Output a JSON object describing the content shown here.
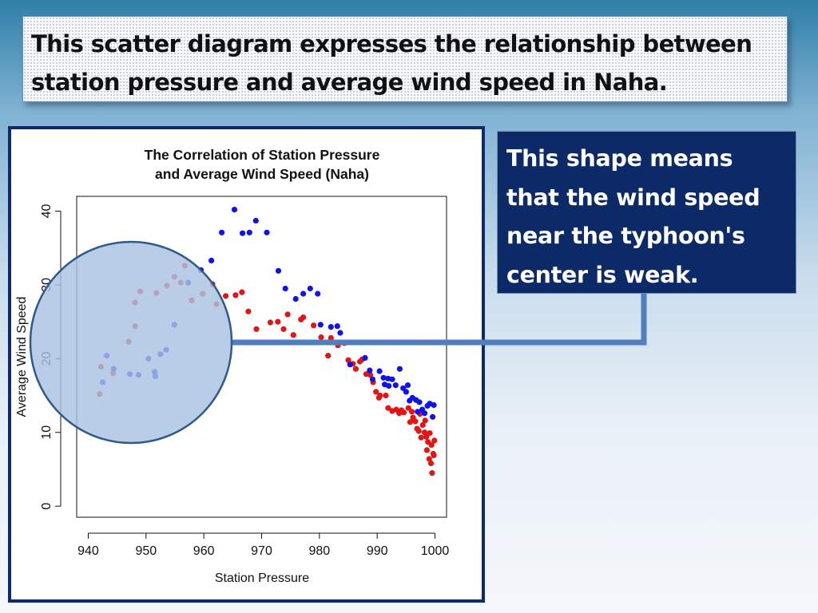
{
  "slide": {
    "title": "This scatter diagram expresses the relationship between station pressure and average wind speed in Naha.",
    "callout": "This shape means that the wind speed near the typhoon's center is weak."
  },
  "colors": {
    "series_red": "#e31414",
    "series_blue": "#1111ee",
    "highlight_fill": "#a9c3e1",
    "highlight_stroke": "#2f5a8a",
    "connector": "#4f7fbc",
    "frame": "#0d2a6c"
  },
  "chart_data": {
    "type": "scatter",
    "title": "The Correlation of Station Pressure and Average Wind Speed (Naha)",
    "title_lines": [
      "The Correlation of Station Pressure",
      "and Average Wind Speed (Naha)"
    ],
    "xlabel": "Station Pressure",
    "ylabel": "Average Wind Speed",
    "xlim": [
      938,
      1002
    ],
    "ylim": [
      -1.5,
      42
    ],
    "xticks": [
      940,
      950,
      960,
      970,
      980,
      990,
      1000
    ],
    "yticks": [
      0,
      10,
      20,
      30,
      40
    ],
    "grid": false,
    "series": [
      {
        "color": "#e31414",
        "points": [
          [
            942,
            15.2
          ],
          [
            942.2,
            18.9
          ],
          [
            944.3,
            18
          ],
          [
            947,
            22.3
          ],
          [
            948.1,
            24.4
          ],
          [
            948.1,
            27.6
          ],
          [
            949,
            29.1
          ],
          [
            951.8,
            28.9
          ],
          [
            953.6,
            29.9
          ],
          [
            954.9,
            31.1
          ],
          [
            956,
            30.3
          ],
          [
            956.7,
            32.6
          ],
          [
            957.9,
            27.9
          ],
          [
            959.8,
            28.8
          ],
          [
            961.5,
            30.1
          ],
          [
            962.2,
            27.4
          ],
          [
            963.8,
            28.5
          ],
          [
            965.5,
            28.6
          ],
          [
            966.6,
            29
          ],
          [
            967.7,
            26.4
          ],
          [
            969.1,
            24
          ],
          [
            971.5,
            24.9
          ],
          [
            972.8,
            25
          ],
          [
            973.8,
            24
          ],
          [
            974.5,
            26
          ],
          [
            975.5,
            23.2
          ],
          [
            976.8,
            25.3
          ],
          [
            977.2,
            25.6
          ],
          [
            979,
            24.5
          ],
          [
            980.3,
            22.9
          ],
          [
            981.5,
            20.4
          ],
          [
            982,
            22.8
          ],
          [
            983.2,
            21.8
          ],
          [
            984.3,
            22.1
          ],
          [
            985,
            19.8
          ],
          [
            985.8,
            19.3
          ],
          [
            986.3,
            18.6
          ],
          [
            987,
            19.6
          ],
          [
            987.4,
            19.9
          ],
          [
            988.1,
            17.9
          ],
          [
            988.8,
            17.8
          ],
          [
            989.3,
            16.8
          ],
          [
            989.8,
            15.5
          ],
          [
            990.5,
            15
          ],
          [
            990.3,
            14.7
          ],
          [
            991.5,
            15
          ],
          [
            991.9,
            13.3
          ],
          [
            992.6,
            12.9
          ],
          [
            993.3,
            13.1
          ],
          [
            993.8,
            12.6
          ],
          [
            994.6,
            12.7
          ],
          [
            995.4,
            13.3
          ],
          [
            995.7,
            11.4
          ],
          [
            996.2,
            12
          ],
          [
            996.6,
            11.5
          ],
          [
            996.9,
            10.5
          ],
          [
            997.2,
            10.2
          ],
          [
            997.6,
            9.3
          ],
          [
            997.9,
            11
          ],
          [
            998.2,
            10
          ],
          [
            998.5,
            9.4
          ],
          [
            998.8,
            8.7
          ],
          [
            999.1,
            9.9
          ],
          [
            999.4,
            8.3
          ],
          [
            999.7,
            7.1
          ],
          [
            999.9,
            8.9
          ],
          [
            998.6,
            7.6
          ],
          [
            999,
            6.4
          ],
          [
            999.3,
            5.8
          ],
          [
            999.5,
            4.5
          ],
          [
            998.3,
            11.6
          ],
          [
            997.4,
            12.5
          ],
          [
            999.8,
            6.9
          ],
          [
            996,
            12.8
          ],
          [
            994.2,
            13
          ]
        ]
      },
      {
        "color": "#1111ee",
        "points": [
          [
            942.5,
            16.8
          ],
          [
            943.2,
            20.4
          ],
          [
            944.4,
            18.6
          ],
          [
            947.2,
            17.9
          ],
          [
            948.7,
            17.8
          ],
          [
            950.4,
            20
          ],
          [
            951.5,
            18.2
          ],
          [
            951.6,
            17.6
          ],
          [
            952.5,
            20.6
          ],
          [
            953.5,
            21.2
          ],
          [
            954.9,
            24.6
          ],
          [
            957.3,
            30.3
          ],
          [
            959.5,
            32
          ],
          [
            961.3,
            33.3
          ],
          [
            963.1,
            37.1
          ],
          [
            965.3,
            40.2
          ],
          [
            966.7,
            37
          ],
          [
            967.9,
            37.1
          ],
          [
            969,
            38.7
          ],
          [
            970.9,
            37.1
          ],
          [
            972.9,
            31.9
          ],
          [
            974.1,
            29.5
          ],
          [
            975.9,
            28.1
          ],
          [
            977.2,
            28.8
          ],
          [
            978.4,
            29.5
          ],
          [
            979.7,
            28.8
          ],
          [
            980.2,
            24.6
          ],
          [
            982,
            24.3
          ],
          [
            983.1,
            24.4
          ],
          [
            983.6,
            23.5
          ],
          [
            985.3,
            19.2
          ],
          [
            987.9,
            20.1
          ],
          [
            988.7,
            18.4
          ],
          [
            989.2,
            17.2
          ],
          [
            990.4,
            18.3
          ],
          [
            991.1,
            17.4
          ],
          [
            991.9,
            17.3
          ],
          [
            991.3,
            16.5
          ],
          [
            992,
            16.3
          ],
          [
            992.6,
            17.2
          ],
          [
            993.2,
            16.4
          ],
          [
            993.9,
            18.6
          ],
          [
            994.5,
            16
          ],
          [
            995,
            15.5
          ],
          [
            995.3,
            16.4
          ],
          [
            995.6,
            14.3
          ],
          [
            996.1,
            14.7
          ],
          [
            996.7,
            14.4
          ],
          [
            997.3,
            14.1
          ],
          [
            997.8,
            13.1
          ],
          [
            998.2,
            12.6
          ],
          [
            998.7,
            13.6
          ],
          [
            999.1,
            13.9
          ],
          [
            999.6,
            12.1
          ],
          [
            999.8,
            13.7
          ],
          [
            997,
            12.8
          ]
        ]
      }
    ]
  }
}
